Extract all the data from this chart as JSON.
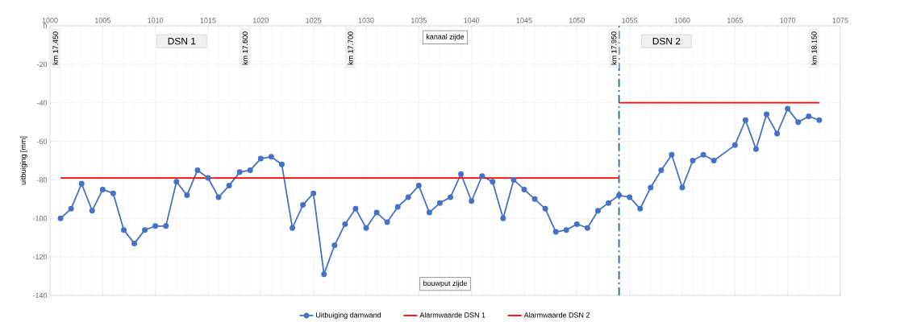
{
  "chart_data": {
    "type": "line",
    "ylabel": "uitbuiging [mm]",
    "xlim": [
      1000,
      1075
    ],
    "xticks": [
      1000,
      1005,
      1010,
      1015,
      1020,
      1025,
      1030,
      1035,
      1040,
      1045,
      1050,
      1055,
      1060,
      1065,
      1070,
      1075
    ],
    "ylim": [
      -140,
      0
    ],
    "yticks": [
      -140,
      -120,
      -100,
      -80,
      -60,
      -40,
      -20,
      0
    ],
    "grid": true,
    "legend": "bottom",
    "series": [
      {
        "name": "Uitbuiging damwand",
        "color": "#4472c4",
        "marker": "circle",
        "x": [
          1001,
          1002,
          1003,
          1004,
          1005,
          1006,
          1007,
          1008,
          1009,
          1010,
          1011,
          1012,
          1013,
          1014,
          1015,
          1016,
          1017,
          1018,
          1019,
          1020,
          1021,
          1022,
          1023,
          1024,
          1025,
          1026,
          1027,
          1028,
          1029,
          1030,
          1031,
          1032,
          1033,
          1034,
          1035,
          1036,
          1037,
          1038,
          1039,
          1040,
          1041,
          1042,
          1043,
          1044,
          1045,
          1046,
          1047,
          1048,
          1049,
          1050,
          1051,
          1052,
          1053,
          1054,
          1055,
          1056,
          1057,
          1058,
          1059,
          1060,
          1061,
          1062,
          1063,
          1065,
          1066,
          1067,
          1068,
          1069,
          1070,
          1071,
          1072,
          1073
        ],
        "values": [
          -100,
          -95,
          -82,
          -96,
          -85,
          -87,
          -106,
          -113,
          -106,
          -104,
          -104,
          -81,
          -88,
          -75,
          -79,
          -89,
          -83,
          -76,
          -75,
          -69,
          -68,
          -72,
          -105,
          -93,
          -87,
          -129,
          -114,
          -103,
          -95,
          -105,
          -97,
          -102,
          -94,
          -89,
          -83,
          -97,
          -92,
          -89,
          -77,
          -91,
          -78,
          -81,
          -100,
          -80,
          -85,
          -90,
          -95,
          -107,
          -106,
          -103,
          -105,
          -96,
          -92,
          -88,
          -89,
          -95,
          -84,
          -75,
          -67,
          -84,
          -70,
          -67,
          -70,
          -62,
          -49,
          -64,
          -46,
          -56,
          -43,
          -50,
          -47,
          -49
        ]
      },
      {
        "name": "Alarmwaarde DSN 1",
        "color": "#ff0000",
        "x": [
          1001,
          1054
        ],
        "values": [
          -79,
          -79
        ]
      },
      {
        "name": "Alarmwaarde DSN 2",
        "color": "#ff0000",
        "x": [
          1054,
          1073
        ],
        "values": [
          -40,
          -40
        ]
      }
    ],
    "ref_lines": [
      {
        "axis": "x",
        "value": 1054,
        "color": "#0070c0",
        "line_style": "dashdot"
      }
    ],
    "annotations": [
      "km 17.450",
      "km 17.600",
      "km 17.700",
      "km 17.950",
      "km 18.150",
      "DSN 1",
      "kanaal zijde",
      "bouwput zijde",
      "DSN 2"
    ]
  }
}
